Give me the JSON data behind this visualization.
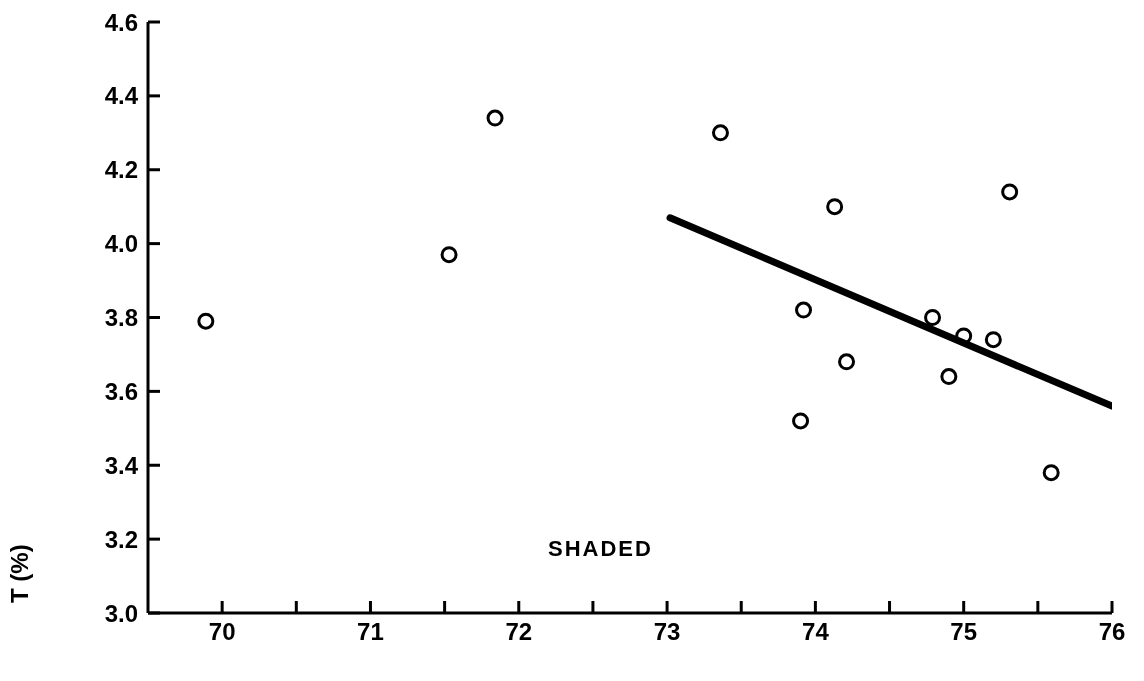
{
  "chart_data": {
    "type": "scatter",
    "ylabel": "T (%)",
    "annotations": [
      "SHADED"
    ],
    "xlim": [
      69.5,
      76
    ],
    "ylim": [
      3.0,
      4.6
    ],
    "xticks": [
      70,
      {
        "value": 70.5,
        "label": null
      },
      71,
      {
        "value": 71.5,
        "label": null
      },
      72,
      {
        "value": 72.5,
        "label": null
      },
      73,
      {
        "value": 73.5,
        "label": null
      },
      74,
      {
        "value": 74.5,
        "label": null
      },
      75,
      {
        "value": 75.5,
        "label": null
      },
      76
    ],
    "yticks": [
      {
        "value": 3.0,
        "label": "3.0"
      },
      {
        "value": 3.2,
        "label": "3.2"
      },
      {
        "value": 3.4,
        "label": "3.4"
      },
      {
        "value": 3.6,
        "label": "3.6"
      },
      {
        "value": 3.8,
        "label": "3.8"
      },
      {
        "value": 4.0,
        "label": "4.0"
      },
      {
        "value": 4.2,
        "label": "4.2"
      },
      {
        "value": 4.4,
        "label": "4.4"
      },
      {
        "value": 4.6,
        "label": "4.6"
      }
    ],
    "grid": false,
    "marker": "circle",
    "series": [
      {
        "color": "#000000",
        "x": [
          69.89,
          71.53,
          71.84,
          73.36,
          74.13,
          75.31,
          73.92,
          74.21,
          73.9,
          74.79,
          75.0,
          75.2,
          74.9,
          75.59
        ],
        "values": [
          3.79,
          3.97,
          4.34,
          4.3,
          4.1,
          4.14,
          3.82,
          3.68,
          3.52,
          3.8,
          3.75,
          3.74,
          3.64,
          3.38
        ]
      },
      {
        "type": "line",
        "color": "#000000",
        "line_style": "solid",
        "marker": "none",
        "x": [
          73.02,
          76
        ],
        "values": [
          4.07,
          3.56
        ]
      }
    ]
  }
}
